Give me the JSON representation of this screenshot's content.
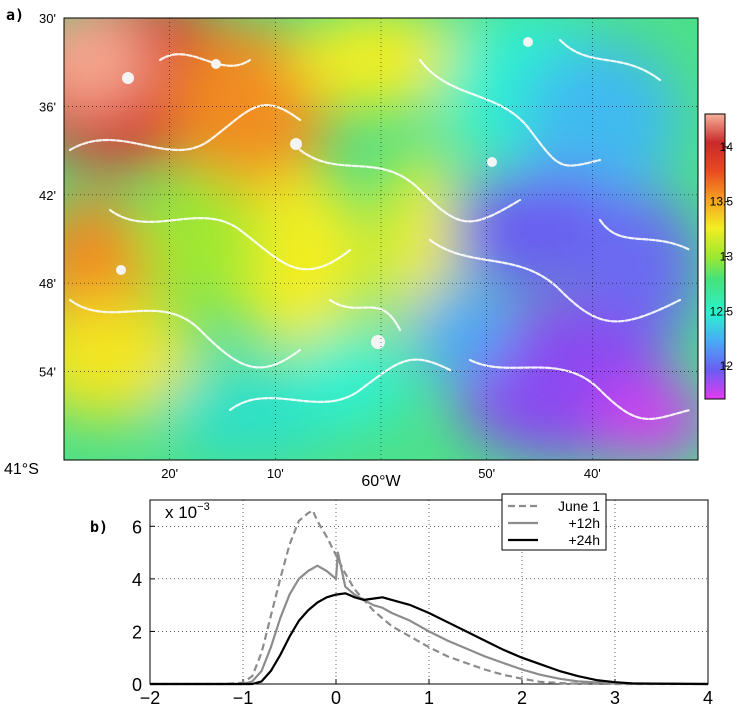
{
  "panel_a": {
    "label": "a)",
    "lat_ticks": [
      "30'",
      "36'",
      "42'",
      "48'",
      "54'",
      "41°S"
    ],
    "lon_ticks": [
      "20'",
      "10'",
      "60°W",
      "50'",
      "40'"
    ],
    "colorbar": {
      "ticks": [
        "14",
        "13.5",
        "13",
        "12.5",
        "12"
      ],
      "range": [
        11.7,
        14.3
      ],
      "colors": [
        "#e43bf0",
        "#6a5df2",
        "#4aa8f6",
        "#2ef0d0",
        "#45e27a",
        "#9ee830",
        "#f2ee22",
        "#f6a020",
        "#e84a22",
        "#c92a2a",
        "#f6b39a"
      ]
    }
  },
  "chart_data": {
    "type": "line",
    "label": "b)",
    "exponent_label": "x 10",
    "exponent_power": "−3",
    "xlim": [
      -2,
      4
    ],
    "ylim": [
      0,
      7
    ],
    "xticks": [
      "−2",
      "−1",
      "0",
      "1",
      "2",
      "3",
      "4"
    ],
    "yticks": [
      "0",
      "2",
      "4",
      "6"
    ],
    "grid": true,
    "legend_position": "top-right",
    "series": [
      {
        "name": "June 1",
        "color": "#8c8c8c",
        "dash": "dashed",
        "x": [
          -2,
          -1.2,
          -1.0,
          -0.9,
          -0.8,
          -0.7,
          -0.6,
          -0.5,
          -0.4,
          -0.3,
          -0.25,
          -0.2,
          -0.1,
          0.0,
          0.1,
          0.2,
          0.3,
          0.4,
          0.5,
          0.6,
          0.8,
          1.0,
          1.2,
          1.4,
          1.6,
          1.8,
          2.0,
          2.2,
          2.5,
          3.0,
          4.0
        ],
        "y": [
          0,
          0,
          0.05,
          0.3,
          1.2,
          2.6,
          4.0,
          5.3,
          6.2,
          6.5,
          6.6,
          6.2,
          5.6,
          4.9,
          4.2,
          3.6,
          3.2,
          2.8,
          2.5,
          2.2,
          1.8,
          1.4,
          1.05,
          0.8,
          0.55,
          0.35,
          0.2,
          0.08,
          0.02,
          0,
          0
        ]
      },
      {
        "name": "+12h",
        "color": "#8c8c8c",
        "dash": "solid",
        "x": [
          -2,
          -1.0,
          -0.9,
          -0.8,
          -0.7,
          -0.6,
          -0.5,
          -0.4,
          -0.3,
          -0.2,
          -0.1,
          0.0,
          0.02,
          0.1,
          0.2,
          0.3,
          0.4,
          0.5,
          0.6,
          0.8,
          1.0,
          1.2,
          1.4,
          1.6,
          1.8,
          2.0,
          2.2,
          2.4,
          2.6,
          3.0,
          4.0
        ],
        "y": [
          0,
          0,
          0.1,
          0.5,
          1.4,
          2.5,
          3.4,
          4.0,
          4.3,
          4.5,
          4.3,
          4.0,
          5.0,
          3.7,
          3.4,
          3.2,
          3.0,
          2.9,
          2.7,
          2.4,
          2.0,
          1.65,
          1.35,
          1.05,
          0.8,
          0.55,
          0.35,
          0.2,
          0.1,
          0.02,
          0
        ]
      },
      {
        "name": "+24h",
        "color": "#000000",
        "dash": "solid",
        "x": [
          -2,
          -0.9,
          -0.8,
          -0.7,
          -0.6,
          -0.5,
          -0.4,
          -0.3,
          -0.2,
          -0.1,
          0.0,
          0.1,
          0.2,
          0.3,
          0.4,
          0.5,
          0.6,
          0.8,
          1.0,
          1.2,
          1.4,
          1.6,
          1.8,
          2.0,
          2.2,
          2.4,
          2.6,
          2.8,
          3.0,
          3.2,
          4.0
        ],
        "y": [
          0,
          0,
          0.1,
          0.5,
          1.1,
          1.8,
          2.4,
          2.8,
          3.1,
          3.3,
          3.4,
          3.45,
          3.3,
          3.2,
          3.25,
          3.3,
          3.2,
          3.0,
          2.7,
          2.35,
          2.0,
          1.65,
          1.3,
          1.0,
          0.75,
          0.5,
          0.3,
          0.15,
          0.07,
          0.02,
          0
        ]
      }
    ]
  }
}
